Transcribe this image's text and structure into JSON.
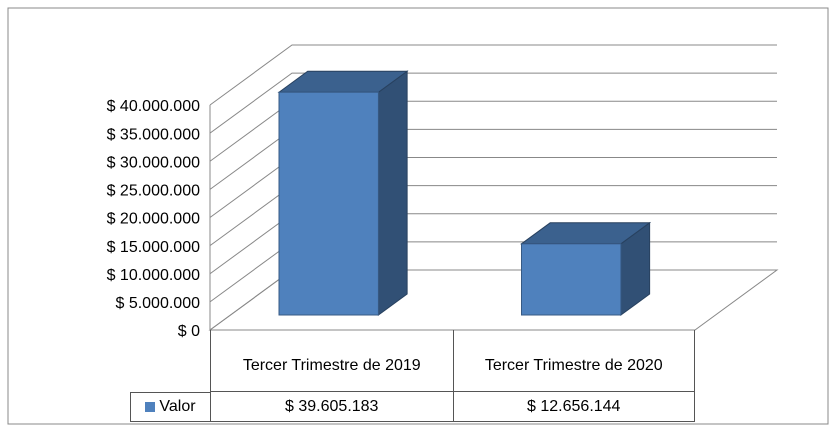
{
  "chart_data": {
    "type": "bar3d",
    "categories": [
      "Tercer Trimestre de 2019",
      "Tercer Trimestre de 2020"
    ],
    "series": [
      {
        "name": "Valor",
        "color": "#4f81bd",
        "values": [
          39605183,
          12656144
        ],
        "value_labels": [
          "$ 39.605.183",
          "$ 12.656.144"
        ]
      }
    ],
    "ylim": [
      0,
      40000000
    ],
    "yticks": [
      {
        "value": 0,
        "label": "$ 0"
      },
      {
        "value": 5000000,
        "label": "$ 5.000.000"
      },
      {
        "value": 10000000,
        "label": "$ 10.000.000"
      },
      {
        "value": 15000000,
        "label": "$ 15.000.000"
      },
      {
        "value": 20000000,
        "label": "$ 20.000.000"
      },
      {
        "value": 25000000,
        "label": "$ 25.000.000"
      },
      {
        "value": 30000000,
        "label": "$ 30.000.000"
      },
      {
        "value": 35000000,
        "label": "$ 35.000.000"
      },
      {
        "value": 40000000,
        "label": "$ 40.000.000"
      }
    ],
    "grid": true,
    "legend": "table"
  }
}
